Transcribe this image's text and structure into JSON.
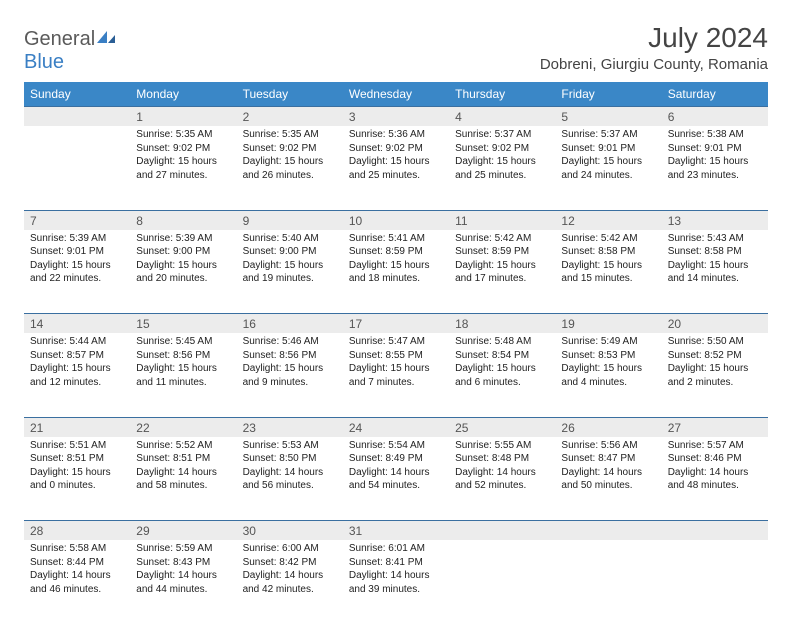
{
  "brand": {
    "part1": "General",
    "part2": "Blue"
  },
  "title": "July 2024",
  "location": "Dobreni, Giurgiu County, Romania",
  "day_headers": [
    "Sunday",
    "Monday",
    "Tuesday",
    "Wednesday",
    "Thursday",
    "Friday",
    "Saturday"
  ],
  "colors": {
    "header_bg": "#3a87c7",
    "header_text": "#ffffff",
    "daynum_bg": "#ececec",
    "daynum_border": "#3a6fa0",
    "logo_gray": "#5a5a5a",
    "logo_blue": "#3a7fc4"
  },
  "weeks": [
    [
      null,
      {
        "n": "1",
        "sr": "Sunrise: 5:35 AM",
        "ss": "Sunset: 9:02 PM",
        "d1": "Daylight: 15 hours",
        "d2": "and 27 minutes."
      },
      {
        "n": "2",
        "sr": "Sunrise: 5:35 AM",
        "ss": "Sunset: 9:02 PM",
        "d1": "Daylight: 15 hours",
        "d2": "and 26 minutes."
      },
      {
        "n": "3",
        "sr": "Sunrise: 5:36 AM",
        "ss": "Sunset: 9:02 PM",
        "d1": "Daylight: 15 hours",
        "d2": "and 25 minutes."
      },
      {
        "n": "4",
        "sr": "Sunrise: 5:37 AM",
        "ss": "Sunset: 9:02 PM",
        "d1": "Daylight: 15 hours",
        "d2": "and 25 minutes."
      },
      {
        "n": "5",
        "sr": "Sunrise: 5:37 AM",
        "ss": "Sunset: 9:01 PM",
        "d1": "Daylight: 15 hours",
        "d2": "and 24 minutes."
      },
      {
        "n": "6",
        "sr": "Sunrise: 5:38 AM",
        "ss": "Sunset: 9:01 PM",
        "d1": "Daylight: 15 hours",
        "d2": "and 23 minutes."
      }
    ],
    [
      {
        "n": "7",
        "sr": "Sunrise: 5:39 AM",
        "ss": "Sunset: 9:01 PM",
        "d1": "Daylight: 15 hours",
        "d2": "and 22 minutes."
      },
      {
        "n": "8",
        "sr": "Sunrise: 5:39 AM",
        "ss": "Sunset: 9:00 PM",
        "d1": "Daylight: 15 hours",
        "d2": "and 20 minutes."
      },
      {
        "n": "9",
        "sr": "Sunrise: 5:40 AM",
        "ss": "Sunset: 9:00 PM",
        "d1": "Daylight: 15 hours",
        "d2": "and 19 minutes."
      },
      {
        "n": "10",
        "sr": "Sunrise: 5:41 AM",
        "ss": "Sunset: 8:59 PM",
        "d1": "Daylight: 15 hours",
        "d2": "and 18 minutes."
      },
      {
        "n": "11",
        "sr": "Sunrise: 5:42 AM",
        "ss": "Sunset: 8:59 PM",
        "d1": "Daylight: 15 hours",
        "d2": "and 17 minutes."
      },
      {
        "n": "12",
        "sr": "Sunrise: 5:42 AM",
        "ss": "Sunset: 8:58 PM",
        "d1": "Daylight: 15 hours",
        "d2": "and 15 minutes."
      },
      {
        "n": "13",
        "sr": "Sunrise: 5:43 AM",
        "ss": "Sunset: 8:58 PM",
        "d1": "Daylight: 15 hours",
        "d2": "and 14 minutes."
      }
    ],
    [
      {
        "n": "14",
        "sr": "Sunrise: 5:44 AM",
        "ss": "Sunset: 8:57 PM",
        "d1": "Daylight: 15 hours",
        "d2": "and 12 minutes."
      },
      {
        "n": "15",
        "sr": "Sunrise: 5:45 AM",
        "ss": "Sunset: 8:56 PM",
        "d1": "Daylight: 15 hours",
        "d2": "and 11 minutes."
      },
      {
        "n": "16",
        "sr": "Sunrise: 5:46 AM",
        "ss": "Sunset: 8:56 PM",
        "d1": "Daylight: 15 hours",
        "d2": "and 9 minutes."
      },
      {
        "n": "17",
        "sr": "Sunrise: 5:47 AM",
        "ss": "Sunset: 8:55 PM",
        "d1": "Daylight: 15 hours",
        "d2": "and 7 minutes."
      },
      {
        "n": "18",
        "sr": "Sunrise: 5:48 AM",
        "ss": "Sunset: 8:54 PM",
        "d1": "Daylight: 15 hours",
        "d2": "and 6 minutes."
      },
      {
        "n": "19",
        "sr": "Sunrise: 5:49 AM",
        "ss": "Sunset: 8:53 PM",
        "d1": "Daylight: 15 hours",
        "d2": "and 4 minutes."
      },
      {
        "n": "20",
        "sr": "Sunrise: 5:50 AM",
        "ss": "Sunset: 8:52 PM",
        "d1": "Daylight: 15 hours",
        "d2": "and 2 minutes."
      }
    ],
    [
      {
        "n": "21",
        "sr": "Sunrise: 5:51 AM",
        "ss": "Sunset: 8:51 PM",
        "d1": "Daylight: 15 hours",
        "d2": "and 0 minutes."
      },
      {
        "n": "22",
        "sr": "Sunrise: 5:52 AM",
        "ss": "Sunset: 8:51 PM",
        "d1": "Daylight: 14 hours",
        "d2": "and 58 minutes."
      },
      {
        "n": "23",
        "sr": "Sunrise: 5:53 AM",
        "ss": "Sunset: 8:50 PM",
        "d1": "Daylight: 14 hours",
        "d2": "and 56 minutes."
      },
      {
        "n": "24",
        "sr": "Sunrise: 5:54 AM",
        "ss": "Sunset: 8:49 PM",
        "d1": "Daylight: 14 hours",
        "d2": "and 54 minutes."
      },
      {
        "n": "25",
        "sr": "Sunrise: 5:55 AM",
        "ss": "Sunset: 8:48 PM",
        "d1": "Daylight: 14 hours",
        "d2": "and 52 minutes."
      },
      {
        "n": "26",
        "sr": "Sunrise: 5:56 AM",
        "ss": "Sunset: 8:47 PM",
        "d1": "Daylight: 14 hours",
        "d2": "and 50 minutes."
      },
      {
        "n": "27",
        "sr": "Sunrise: 5:57 AM",
        "ss": "Sunset: 8:46 PM",
        "d1": "Daylight: 14 hours",
        "d2": "and 48 minutes."
      }
    ],
    [
      {
        "n": "28",
        "sr": "Sunrise: 5:58 AM",
        "ss": "Sunset: 8:44 PM",
        "d1": "Daylight: 14 hours",
        "d2": "and 46 minutes."
      },
      {
        "n": "29",
        "sr": "Sunrise: 5:59 AM",
        "ss": "Sunset: 8:43 PM",
        "d1": "Daylight: 14 hours",
        "d2": "and 44 minutes."
      },
      {
        "n": "30",
        "sr": "Sunrise: 6:00 AM",
        "ss": "Sunset: 8:42 PM",
        "d1": "Daylight: 14 hours",
        "d2": "and 42 minutes."
      },
      {
        "n": "31",
        "sr": "Sunrise: 6:01 AM",
        "ss": "Sunset: 8:41 PM",
        "d1": "Daylight: 14 hours",
        "d2": "and 39 minutes."
      },
      null,
      null,
      null
    ]
  ]
}
